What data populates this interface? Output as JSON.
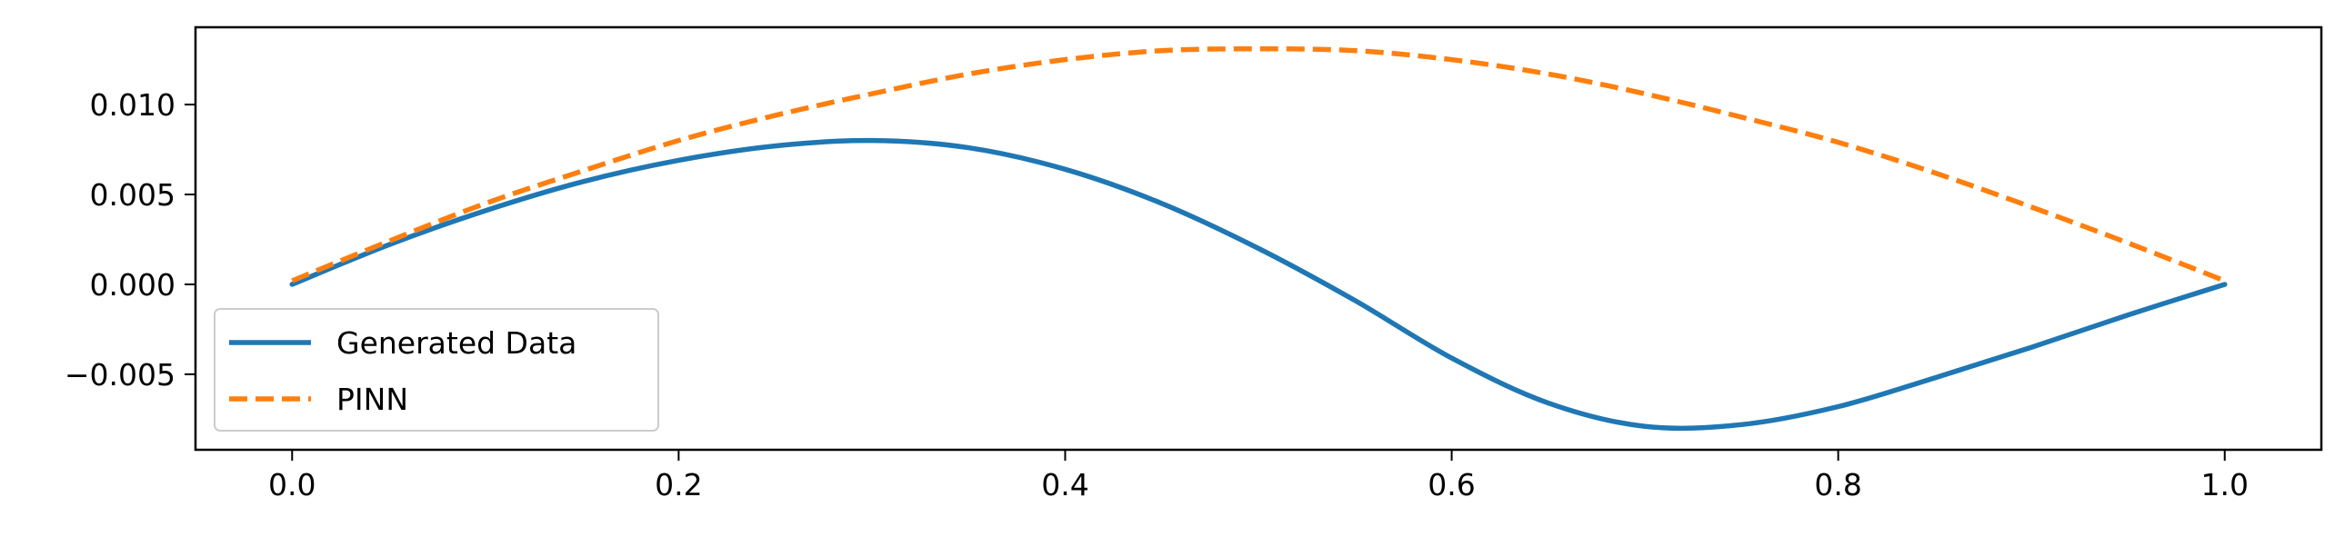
{
  "chart_data": {
    "type": "line",
    "title": "",
    "xlabel": "",
    "ylabel": "",
    "xlim": [
      -0.05,
      1.05
    ],
    "ylim": [
      -0.0092,
      0.0143
    ],
    "xticks": [
      0.0,
      0.2,
      0.4,
      0.6,
      0.8,
      1.0
    ],
    "xtick_labels": [
      "0.0",
      "0.2",
      "0.4",
      "0.6",
      "0.8",
      "1.0"
    ],
    "yticks": [
      -0.005,
      0.0,
      0.005,
      0.01
    ],
    "ytick_labels": [
      "−0.005",
      "0.000",
      "0.005",
      "0.010"
    ],
    "grid": false,
    "legend_position": "lower-left",
    "series": [
      {
        "name": "Generated Data",
        "color": "#1f77b4",
        "style": "solid",
        "x": [
          0.0,
          0.05,
          0.1,
          0.15,
          0.2,
          0.25,
          0.3,
          0.35,
          0.4,
          0.45,
          0.5,
          0.55,
          0.6,
          0.65,
          0.7,
          0.75,
          0.8,
          0.85,
          0.9,
          0.95,
          1.0
        ],
        "y": [
          0.0,
          0.0022,
          0.0041,
          0.0057,
          0.0069,
          0.0077,
          0.008,
          0.0076,
          0.0064,
          0.0045,
          0.002,
          -0.0009,
          -0.0041,
          -0.0066,
          -0.0079,
          -0.0078,
          -0.0068,
          -0.0052,
          -0.0035,
          -0.0017,
          0.0
        ]
      },
      {
        "name": "PINN",
        "color": "#ff7f0e",
        "style": "dashed",
        "x": [
          0.0,
          0.05,
          0.1,
          0.15,
          0.2,
          0.25,
          0.3,
          0.35,
          0.4,
          0.45,
          0.5,
          0.55,
          0.6,
          0.65,
          0.7,
          0.75,
          0.8,
          0.85,
          0.9,
          0.95,
          1.0
        ],
        "y": [
          0.0002,
          0.0024,
          0.0045,
          0.0063,
          0.008,
          0.0094,
          0.0106,
          0.0117,
          0.0125,
          0.013,
          0.0131,
          0.013,
          0.0125,
          0.0117,
          0.0106,
          0.0093,
          0.0079,
          0.0062,
          0.0043,
          0.0023,
          0.0002
        ]
      }
    ]
  }
}
